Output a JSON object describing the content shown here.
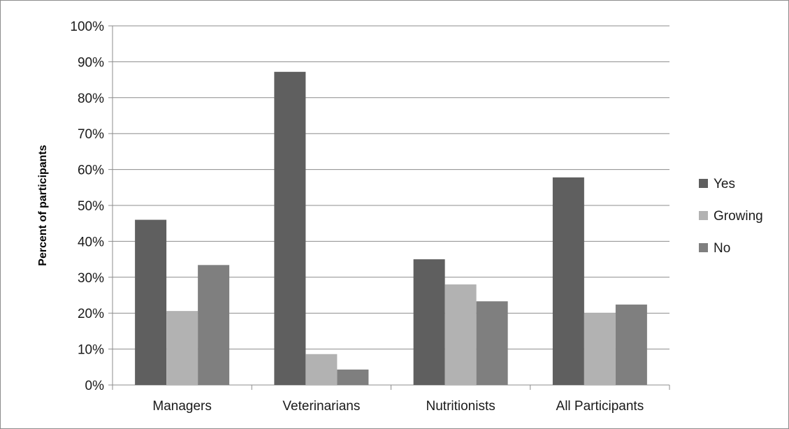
{
  "chart_data": {
    "type": "bar",
    "title": "",
    "xlabel": "",
    "ylabel": "Percent of participants",
    "ylim": [
      0,
      100
    ],
    "yticks": [
      "0%",
      "10%",
      "20%",
      "30%",
      "40%",
      "50%",
      "60%",
      "70%",
      "80%",
      "90%",
      "100%"
    ],
    "grid": true,
    "legend_position": "right",
    "categories": [
      "Managers",
      "Veterinarians",
      "Nutritionists",
      "All Participants"
    ],
    "series": [
      {
        "name": "Yes",
        "color": "#5f5f5f",
        "values": [
          46,
          87.2,
          35,
          57.8
        ]
      },
      {
        "name": "Growing",
        "color": "#b2b2b2",
        "values": [
          20.6,
          8.6,
          28,
          20
        ]
      },
      {
        "name": "No",
        "color": "#7f7f7f",
        "values": [
          33.4,
          4.3,
          23.3,
          22.4
        ]
      }
    ]
  }
}
